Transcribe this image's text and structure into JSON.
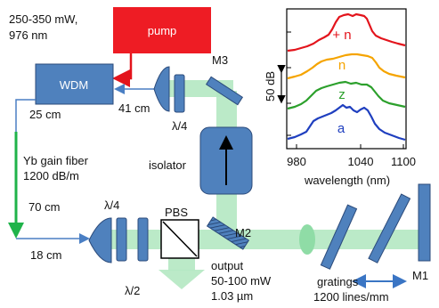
{
  "pump": {
    "label": "pump",
    "power": "250-350 mW,",
    "wavelength": "976 nm"
  },
  "wdm": {
    "label": "WDM",
    "length": "25 cm"
  },
  "fiber": {
    "label_line1": "Yb gain fiber",
    "label_line2": "1200 dB/m",
    "length": "70 cm",
    "lead_length": "18 cm"
  },
  "free_space": {
    "length": "41 cm"
  },
  "components": {
    "qwp_top": "λ/4",
    "qwp_bottom": "λ/4",
    "hwp": "λ/2",
    "pbs": "PBS",
    "isolator": "isolator",
    "m1": "M1",
    "m2": "M2",
    "m3": "M3"
  },
  "output": {
    "label": "output",
    "power": "50-100 mW",
    "wavelength": "1.03 µm"
  },
  "gratings": {
    "label": "gratings",
    "density": "1200 lines/mm"
  },
  "inset": {
    "xlabel": "wavelength (nm)",
    "x_ticks": [
      "980",
      "1040",
      "1100"
    ],
    "scale_bar": "50 dB",
    "series": [
      {
        "label": "+ n",
        "color": "#e3141c"
      },
      {
        "label": "n",
        "color": "#f5a400"
      },
      {
        "label": "z",
        "color": "#2ca02c"
      },
      {
        "label": "a",
        "color": "#1f3fbf"
      }
    ]
  },
  "colors": {
    "beam": "#b4e8c2",
    "fiber": "#1fb34a",
    "optic": "#4f81bd",
    "pump": "#ee1c24"
  }
}
